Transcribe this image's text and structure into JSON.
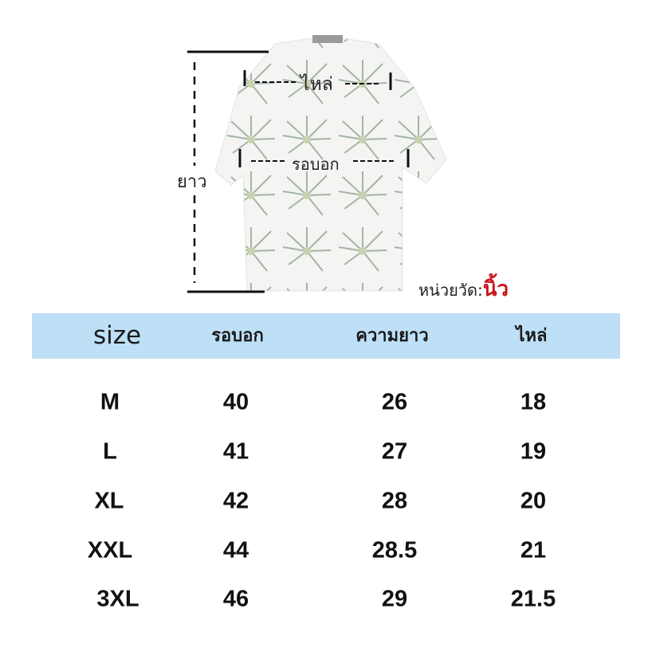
{
  "diagram": {
    "shoulder_label": "ไหล่",
    "chest_label": "รอบอก",
    "length_label": "ยาว",
    "unit_prefix": "หน่วยวัด:",
    "unit_value": "นิ้ว",
    "unit_color": "#c8161d"
  },
  "table": {
    "header_color": "#bde0f7",
    "headers": [
      "size",
      "รอบอก",
      "ความยาว",
      "ไหล่"
    ],
    "rows": [
      [
        "M",
        "40",
        "26",
        "18"
      ],
      [
        "L",
        "41",
        "27",
        "19"
      ],
      [
        "XL",
        "42",
        "28",
        "20"
      ],
      [
        "XXL",
        "44",
        "28.5",
        "21"
      ],
      [
        "3XL",
        "46",
        "29",
        "21.5"
      ]
    ]
  }
}
